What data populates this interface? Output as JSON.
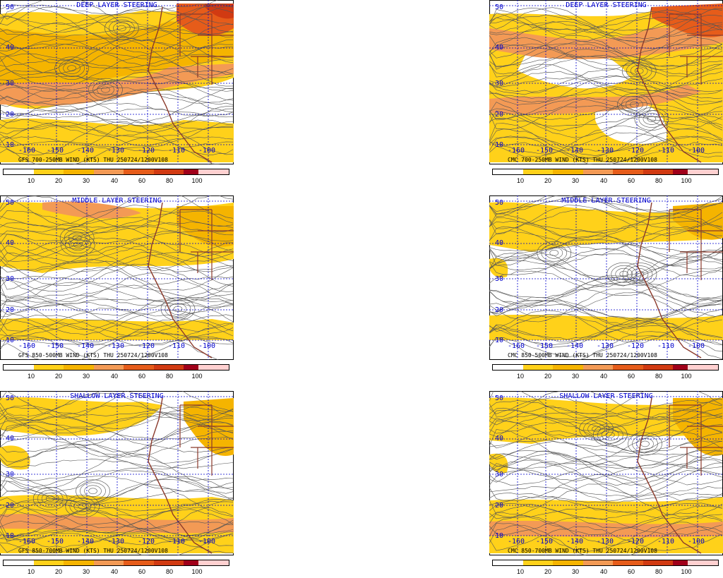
{
  "colors": {
    "c10": "#ffffff",
    "c20": "#ffd11a",
    "c30": "#f5b400",
    "c40": "#f39a55",
    "c60": "#e65c1a",
    "c80": "#d13a12",
    "c100": "#a0001a",
    "c100p": "#ffd0d0",
    "grid": "#0000cc",
    "streamline": "#555555",
    "border": "#8b3a2b"
  },
  "colorbar_labels": [
    "10",
    "20",
    "30",
    "40",
    "60",
    "80",
    "100"
  ],
  "lat_labels": [
    "50",
    "40",
    "30",
    "20",
    "10"
  ],
  "lon_labels": [
    "-160",
    "-150",
    "-140",
    "-130",
    "-120",
    "-110",
    "-100"
  ],
  "panels": [
    {
      "id": "gfs-deep",
      "title": "DEEP LAYER STEERING",
      "caption": "GFS 700-250MB WIND (KTS) THU 250724/1200V108"
    },
    {
      "id": "cmc-deep",
      "title": "DEEP LAYER STEERING",
      "caption": "CMC 700-250MB WIND (KTS) THU 250724/1200V108"
    },
    {
      "id": "gfs-middle",
      "title": "MIDDLE LAYER STEERING",
      "caption": "GFS 850-500MB WIND (KTS) THU 250724/1200V108"
    },
    {
      "id": "cmc-middle",
      "title": "MIDDLE LAYER STEERING",
      "caption": "CMC 850-500MB WIND (KTS) THU 250724/1200V108"
    },
    {
      "id": "gfs-shallow",
      "title": "SHALLOW LAYER STEERING",
      "caption": "GFS 850-700MB WIND (KTS) THU 250724/1200V108"
    },
    {
      "id": "cmc-shallow",
      "title": "SHALLOW LAYER STEERING",
      "caption": "CMC 850-700MB WIND (KTS) THU 250724/1200V108"
    }
  ]
}
